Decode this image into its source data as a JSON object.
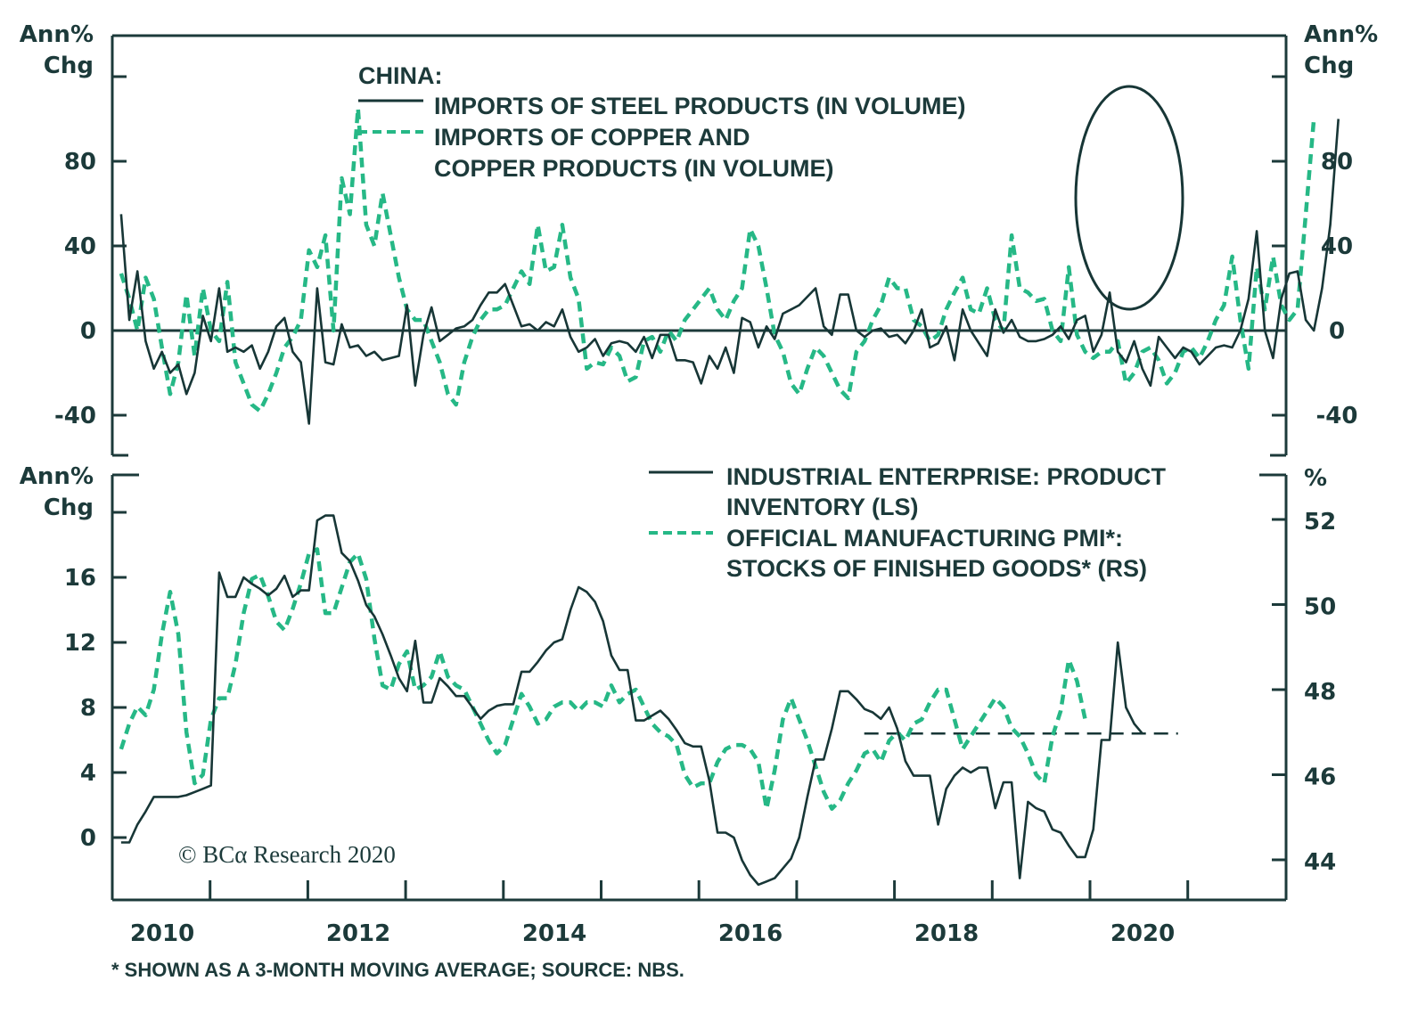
{
  "chart_data": [
    {
      "type": "line",
      "panel": "top",
      "title": "CHINA:",
      "ylabel_left": "Ann% Chg",
      "ylabel_right": "Ann% Chg",
      "yticks": [
        -40,
        0,
        40,
        80
      ],
      "ylim": [
        -50,
        120
      ],
      "xlim": [
        2009.83,
        2021.8
      ],
      "zero_line": true,
      "annotation": "ellipse highlighting 2020 spike",
      "legend": [
        {
          "label": "IMPORTS OF STEEL PRODUCTS (IN VOLUME)",
          "style": "solid"
        },
        {
          "label_lines": [
            "IMPORTS OF COPPER AND",
            "COPPER PRODUCTS (IN VOLUME)"
          ],
          "style": "dashed"
        }
      ],
      "series": [
        {
          "name": "Imports of steel products (in volume)",
          "style": "solid",
          "start": 2009.92,
          "step_months": 1,
          "values": [
            55,
            5,
            28,
            -5,
            -18,
            -10,
            -20,
            -16,
            -30,
            -20,
            7,
            -5,
            20,
            -10,
            -8,
            -10,
            -7,
            -18,
            -10,
            2,
            6,
            -10,
            -15,
            -44,
            20,
            -15,
            -16,
            3,
            -8,
            -7,
            -12,
            -10,
            -14,
            -13,
            -12,
            12,
            -26,
            -2,
            11,
            -5,
            -2,
            1,
            2,
            5,
            12,
            18,
            18,
            22,
            12,
            2,
            3,
            0,
            4,
            2,
            10,
            -3,
            -10,
            -8,
            -4,
            -12,
            -6,
            -5,
            -6,
            -10,
            -3,
            -13,
            -2,
            -2,
            -14,
            -14,
            -15,
            -25,
            -12,
            -18,
            -8,
            -20,
            6,
            4,
            -8,
            2,
            -4,
            8,
            10,
            12,
            16,
            20,
            2,
            -2,
            17,
            17,
            0,
            -3,
            0,
            1,
            -3,
            -2,
            -6,
            0,
            10,
            -8,
            -6,
            2,
            -14,
            10,
            0,
            -6,
            -12,
            10,
            -1,
            5,
            -3,
            -5,
            -5,
            -4,
            -2,
            2,
            -4,
            5,
            7,
            -10,
            -2,
            18,
            -10,
            -15,
            -5,
            -18,
            -26,
            -3,
            -8,
            -13,
            -8,
            -10,
            -16,
            -12,
            -8,
            -7,
            -8,
            0,
            15,
            47,
            0,
            -13,
            15,
            27,
            28,
            5,
            0,
            20,
            50,
            100
          ]
        },
        {
          "name": "Imports of copper and copper products (in volume)",
          "style": "dashed",
          "start": 2009.92,
          "step_months": 1,
          "values": [
            27,
            15,
            0,
            25,
            15,
            -8,
            -30,
            -15,
            17,
            -12,
            20,
            0,
            -5,
            23,
            -15,
            -25,
            -35,
            -38,
            -30,
            -20,
            -8,
            -3,
            5,
            38,
            30,
            45,
            0,
            72,
            55,
            105,
            50,
            40,
            65,
            45,
            25,
            10,
            5,
            5,
            -5,
            -15,
            -30,
            -35,
            -15,
            -3,
            5,
            10,
            10,
            12,
            20,
            28,
            22,
            50,
            28,
            30,
            50,
            25,
            15,
            -18,
            -15,
            -16,
            -8,
            -12,
            -24,
            -22,
            -5,
            -3,
            -10,
            0,
            -5,
            5,
            10,
            15,
            20,
            10,
            5,
            14,
            20,
            48,
            40,
            20,
            -2,
            -10,
            -25,
            -30,
            -18,
            -8,
            -12,
            -20,
            -28,
            -32,
            -10,
            -5,
            5,
            12,
            25,
            20,
            20,
            5,
            2,
            -5,
            -2,
            10,
            18,
            25,
            10,
            8,
            20,
            5,
            0,
            45,
            20,
            18,
            14,
            15,
            0,
            -5,
            30,
            -2,
            -10,
            -13,
            -10,
            -10,
            -5,
            -25,
            -20,
            -10,
            -8,
            -14,
            -25,
            -20,
            -10,
            -8,
            -13,
            -5,
            5,
            12,
            35,
            5,
            -18,
            30,
            10,
            35,
            12,
            5,
            10,
            55,
            100
          ]
        }
      ]
    },
    {
      "type": "line",
      "panel": "bottom",
      "ylabel_left": "Ann% Chg",
      "ylabel_right": "%",
      "yticks_left": [
        0,
        4,
        8,
        12,
        16
      ],
      "ylim_left": [
        -4,
        22
      ],
      "yticks_right": [
        44,
        46,
        48,
        50,
        52
      ],
      "ylim_right": [
        43.2,
        53.3
      ],
      "xlim": [
        2009.83,
        2021.8
      ],
      "reference_line": {
        "axis": "left",
        "value": 6.4,
        "style": "dashed",
        "from": 2017.5,
        "to": 2020.7
      },
      "credit": "© BCα Research 2020",
      "legend": [
        {
          "label_lines": [
            "INDUSTRIAL ENTERPRISE: PRODUCT",
            "INVENTORY (LS)"
          ],
          "style": "solid",
          "axis": "left"
        },
        {
          "label_lines": [
            "OFFICIAL MANUFACTURING PMI*:",
            "STOCKS OF FINISHED GOODS* (RS)"
          ],
          "style": "dashed",
          "axis": "right"
        }
      ],
      "series": [
        {
          "name": "Industrial enterprise: product inventory (LS)",
          "style": "solid",
          "axis": "left",
          "start": 2009.92,
          "step_months": 1,
          "values": [
            -0.3,
            -0.3,
            0.8,
            1.6,
            2.5,
            2.5,
            2.5,
            2.5,
            2.6,
            2.8,
            3.0,
            3.2,
            16.3,
            14.8,
            14.8,
            16.0,
            15.6,
            15.3,
            14.9,
            15.3,
            16.1,
            14.8,
            15.2,
            15.2,
            19.5,
            19.8,
            19.8,
            17.5,
            17.0,
            15.8,
            14.3,
            13.6,
            12.5,
            11.2,
            9.8,
            9.0,
            12.1,
            8.3,
            8.3,
            9.8,
            9.3,
            8.7,
            8.7,
            8.0,
            7.3,
            7.8,
            8.1,
            8.2,
            8.2,
            10.2,
            10.2,
            10.8,
            11.5,
            12.0,
            12.2,
            14.0,
            15.4,
            15.1,
            14.5,
            13.3,
            11.2,
            10.3,
            10.3,
            7.2,
            7.2,
            7.5,
            7.8,
            7.3,
            6.6,
            5.8,
            5.6,
            5.6,
            3.5,
            0.3,
            0.3,
            0.0,
            -1.4,
            -2.3,
            -2.9,
            -2.7,
            -2.5,
            -1.9,
            -1.3,
            0.0,
            2.5,
            4.8,
            4.8,
            6.7,
            9.0,
            9.0,
            8.5,
            7.9,
            7.7,
            7.3,
            8.0,
            6.7,
            4.7,
            3.8,
            3.8,
            3.8,
            0.8,
            3.0,
            3.8,
            4.3,
            4.0,
            4.3,
            4.3,
            1.8,
            3.4,
            3.4,
            -2.5,
            2.2,
            1.8,
            1.6,
            0.5,
            0.3,
            -0.5,
            -1.2,
            -1.2,
            0.5,
            6.0,
            6.0,
            12.0,
            8.0,
            7.0,
            6.4
          ]
        },
        {
          "name": "Official manufacturing PMI: stocks of finished goods (RS)",
          "style": "dashed",
          "axis": "right",
          "start": 2009.92,
          "step_months": 1,
          "values": [
            46.6,
            47.2,
            47.6,
            47.4,
            48.0,
            49.3,
            50.3,
            49.3,
            47.0,
            45.8,
            46.0,
            47.3,
            47.8,
            47.8,
            48.6,
            49.8,
            50.6,
            50.7,
            50.2,
            49.6,
            49.4,
            49.9,
            50.5,
            51.2,
            51.3,
            49.8,
            49.8,
            50.4,
            51.0,
            51.2,
            50.6,
            49.2,
            48.1,
            48.0,
            48.6,
            48.9,
            48.0,
            48.1,
            48.3,
            48.9,
            48.3,
            48.1,
            48.0,
            47.6,
            47.2,
            46.8,
            46.5,
            46.7,
            47.3,
            47.9,
            47.6,
            47.2,
            47.3,
            47.6,
            47.7,
            47.7,
            47.5,
            47.7,
            47.7,
            47.6,
            48.1,
            47.7,
            47.9,
            48.0,
            47.6,
            47.2,
            47.0,
            46.9,
            46.7,
            46.0,
            45.7,
            45.8,
            45.8,
            46.3,
            46.6,
            46.7,
            46.7,
            46.6,
            46.3,
            45.2,
            46.1,
            47.3,
            47.8,
            47.3,
            46.8,
            46.2,
            45.6,
            45.2,
            45.4,
            45.8,
            46.1,
            46.5,
            46.6,
            46.3,
            46.8,
            47.0,
            46.8,
            47.2,
            47.3,
            47.7,
            48.0,
            48.0,
            47.3,
            46.6,
            46.9,
            47.2,
            47.5,
            47.8,
            47.6,
            47.1,
            46.9,
            46.5,
            46.0,
            45.8,
            46.9,
            47.5,
            48.7,
            48.2,
            47.3
          ]
        }
      ]
    }
  ],
  "xaxis": {
    "tick_labels": [
      "2010",
      "2012",
      "2014",
      "2016",
      "2018",
      "2020"
    ]
  },
  "footnote": "* SHOWN AS A 3-MONTH MOVING AVERAGE; SOURCE: NBS.",
  "colors": {
    "solid_line": "#173636",
    "dashed_line": "#26b886",
    "axis": "#1c3a3a"
  }
}
